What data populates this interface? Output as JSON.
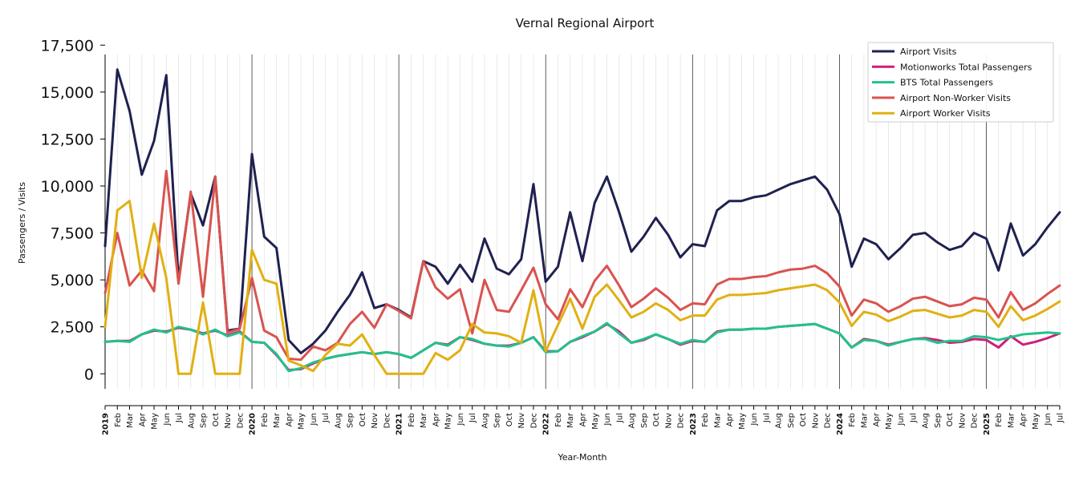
{
  "chart_data": {
    "type": "line",
    "title": "Vernal Regional Airport",
    "xlabel": "Year-Month",
    "ylabel": "Passengers / Visits",
    "ylim": [
      -800,
      17000
    ],
    "yticks": [
      0,
      2500,
      5000,
      7500,
      10000,
      12500,
      15000,
      17500
    ],
    "ytick_labels": [
      "0",
      "2,500",
      "5,000",
      "7,500",
      "10,000",
      "12,500",
      "15,000",
      "17,500"
    ],
    "grid": "vertical minor lines per month; bold lines at each January",
    "legend_position": "top-right",
    "x": [
      "2019-01",
      "2019-02",
      "2019-03",
      "2019-04",
      "2019-05",
      "2019-06",
      "2019-07",
      "2019-08",
      "2019-09",
      "2019-10",
      "2019-11",
      "2019-12",
      "2020-01",
      "2020-02",
      "2020-03",
      "2020-04",
      "2020-05",
      "2020-06",
      "2020-07",
      "2020-08",
      "2020-09",
      "2020-10",
      "2020-11",
      "2020-12",
      "2021-01",
      "2021-02",
      "2021-03",
      "2021-04",
      "2021-05",
      "2021-06",
      "2021-07",
      "2021-08",
      "2021-09",
      "2021-10",
      "2021-11",
      "2021-12",
      "2022-01",
      "2022-02",
      "2022-03",
      "2022-04",
      "2022-05",
      "2022-06",
      "2022-07",
      "2022-08",
      "2022-09",
      "2022-10",
      "2022-11",
      "2022-12",
      "2023-01",
      "2023-02",
      "2023-03",
      "2023-04",
      "2023-05",
      "2023-06",
      "2023-07",
      "2023-08",
      "2023-09",
      "2023-10",
      "2023-11",
      "2023-12",
      "2024-01",
      "2024-02",
      "2024-03",
      "2024-04",
      "2024-05",
      "2024-06",
      "2024-07",
      "2024-08",
      "2024-09",
      "2024-10",
      "2024-11",
      "2024-12",
      "2025-01",
      "2025-02",
      "2025-03",
      "2025-04",
      "2025-05",
      "2025-06",
      "2025-07"
    ],
    "tick_labels": [
      "2019",
      "Feb",
      "Mar",
      "Apr",
      "May",
      "Jun",
      "Jul",
      "Aug",
      "Sep",
      "Oct",
      "Nov",
      "Dec",
      "2020",
      "Feb",
      "Mar",
      "Apr",
      "May",
      "Jun",
      "Jul",
      "Aug",
      "Sep",
      "Oct",
      "Nov",
      "Dec",
      "2021",
      "Feb",
      "Mar",
      "Apr",
      "May",
      "Jun",
      "Jul",
      "Aug",
      "Sep",
      "Oct",
      "Nov",
      "Dec",
      "2022",
      "Feb",
      "Mar",
      "Apr",
      "May",
      "Jun",
      "Jul",
      "Aug",
      "Sep",
      "Oct",
      "Nov",
      "Dec",
      "2023",
      "Feb",
      "Mar",
      "Apr",
      "May",
      "Jun",
      "Jul",
      "Aug",
      "Sep",
      "Oct",
      "Nov",
      "Dec",
      "2024",
      "Feb",
      "Mar",
      "Apr",
      "May",
      "Jun",
      "Jul",
      "Aug",
      "Sep",
      "Oct",
      "Nov",
      "Dec",
      "2025",
      "Feb",
      "Mar",
      "Apr",
      "May",
      "Jun",
      "Jul"
    ],
    "series": [
      {
        "name": "Airport Visits",
        "color": "#1f2150",
        "values": [
          6800,
          16200,
          14000,
          10600,
          12400,
          15900,
          5000,
          9600,
          7900,
          10500,
          2300,
          2400,
          11700,
          7300,
          6700,
          1800,
          1100,
          1600,
          2300,
          3300,
          4200,
          5400,
          3500,
          3700,
          3400,
          3000,
          6000,
          5700,
          4800,
          5800,
          4900,
          7200,
          5600,
          5300,
          6100,
          10100,
          4900,
          5700,
          8600,
          6000,
          9100,
          10500,
          8600,
          6500,
          7300,
          8300,
          7400,
          6200,
          6900,
          6800,
          8700,
          9200,
          9200,
          9400,
          9500,
          9800,
          10100,
          10300,
          10500,
          9800,
          8500,
          5700,
          7200,
          6900,
          6100,
          6700,
          7400,
          7500,
          7000,
          6600,
          6800,
          7500,
          7200,
          5500,
          8000,
          6300,
          6900,
          7800,
          8600
        ]
      },
      {
        "name": "Motionworks Total Passengers",
        "color": "#cc1f7a",
        "values": [
          1700,
          1750,
          1750,
          2100,
          2300,
          2250,
          2450,
          2350,
          2150,
          2300,
          2050,
          2250,
          1700,
          1650,
          1000,
          200,
          250,
          550,
          800,
          950,
          1050,
          1150,
          1050,
          1150,
          1050,
          850,
          1250,
          1650,
          1550,
          1950,
          1800,
          1600,
          1500,
          1500,
          1650,
          1950,
          1200,
          1200,
          1700,
          1950,
          2250,
          2650,
          2250,
          1650,
          1800,
          2100,
          1850,
          1550,
          1750,
          1700,
          2250,
          2350,
          2350,
          2400,
          2400,
          2500,
          2550,
          2600,
          2650,
          2400,
          2150,
          1400,
          1850,
          1750,
          1550,
          1700,
          1850,
          1900,
          1800,
          1650,
          1700,
          1850,
          1800,
          1400,
          2000,
          1550,
          1700,
          1900,
          2150
        ]
      },
      {
        "name": "BTS Total Passengers",
        "color": "#21c28b",
        "values": [
          1700,
          1750,
          1700,
          2100,
          2350,
          2200,
          2500,
          2350,
          2100,
          2350,
          2000,
          2200,
          1700,
          1650,
          1050,
          150,
          300,
          600,
          800,
          950,
          1050,
          1150,
          1050,
          1150,
          1050,
          850,
          1250,
          1650,
          1500,
          1950,
          1850,
          1600,
          1500,
          1450,
          1650,
          1950,
          1150,
          1200,
          1700,
          2000,
          2250,
          2700,
          2150,
          1650,
          1850,
          2100,
          1850,
          1600,
          1800,
          1700,
          2200,
          2350,
          2350,
          2400,
          2400,
          2500,
          2550,
          2600,
          2650,
          2400,
          2150,
          1400,
          1800,
          1750,
          1500,
          1700,
          1850,
          1850,
          1650,
          1750,
          1750,
          2000,
          1950,
          1800,
          1950,
          2100,
          2150,
          2200,
          2150
        ]
      },
      {
        "name": "Airport Non-Worker Visits",
        "color": "#d9534f",
        "values": [
          4300,
          7500,
          4700,
          5500,
          4400,
          10800,
          4800,
          9700,
          4100,
          10500,
          2200,
          2400,
          5100,
          2300,
          1950,
          800,
          750,
          1450,
          1250,
          1650,
          2650,
          3300,
          2450,
          3700,
          3350,
          2950,
          6000,
          4600,
          4000,
          4500,
          2150,
          5000,
          3400,
          3300,
          4450,
          5650,
          3700,
          2900,
          4500,
          3550,
          4950,
          5750,
          4700,
          3550,
          4000,
          4550,
          4050,
          3400,
          3750,
          3700,
          4750,
          5050,
          5050,
          5150,
          5200,
          5400,
          5550,
          5600,
          5750,
          5350,
          4650,
          3100,
          3950,
          3750,
          3300,
          3600,
          4000,
          4100,
          3850,
          3600,
          3700,
          4050,
          3950,
          3000,
          4350,
          3400,
          3750,
          4250,
          4700
        ]
      },
      {
        "name": "Airport Worker Visits",
        "color": "#e1b012",
        "values": [
          2500,
          8700,
          9200,
          5100,
          8000,
          5100,
          0,
          0,
          3800,
          0,
          0,
          0,
          6600,
          5000,
          4800,
          700,
          450,
          150,
          1000,
          1600,
          1500,
          2100,
          1000,
          0,
          0,
          0,
          0,
          1100,
          750,
          1250,
          2650,
          2200,
          2150,
          2000,
          1650,
          4450,
          1200,
          2600,
          4000,
          2400,
          4100,
          4750,
          3900,
          3000,
          3300,
          3750,
          3400,
          2850,
          3100,
          3100,
          3950,
          4200,
          4200,
          4250,
          4300,
          4450,
          4550,
          4650,
          4750,
          4450,
          3800,
          2550,
          3300,
          3150,
          2800,
          3050,
          3350,
          3400,
          3200,
          3000,
          3100,
          3400,
          3300,
          2500,
          3600,
          2850,
          3100,
          3450,
          3850
        ]
      }
    ]
  }
}
